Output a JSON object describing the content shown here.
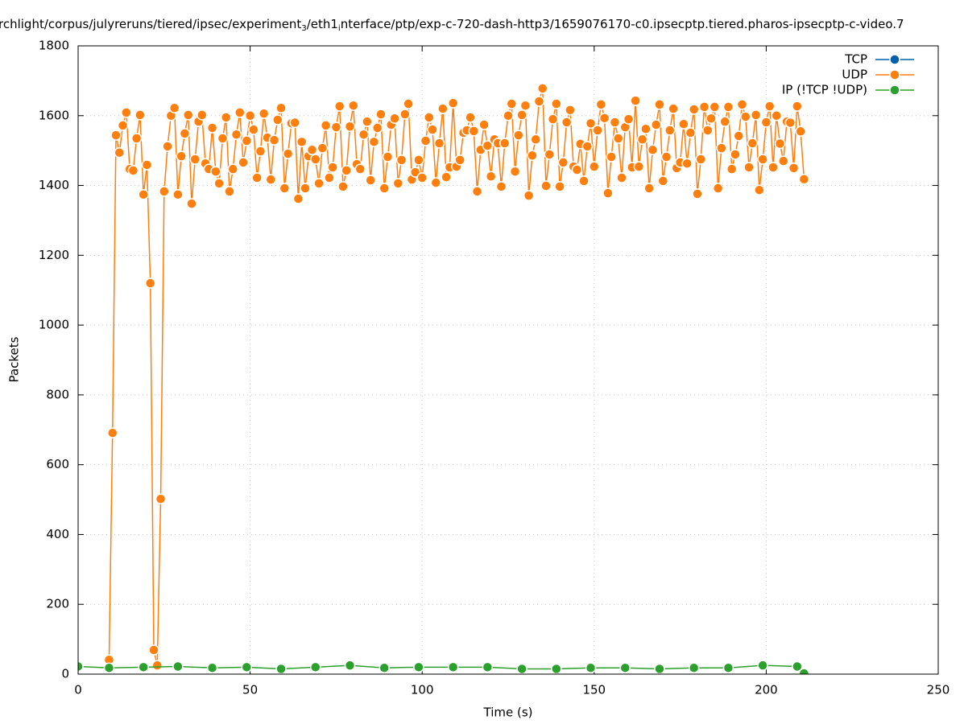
{
  "chart_data": {
    "type": "line",
    "title": [
      "rchlight/corpus/julyreruns/tiered/ipsec/experiment",
      "3",
      "/eth1",
      "i",
      "nterface/ptp/exp-c-720-dash-http3/1659076170-c0.ipsecptp.tiered.pharos-ipsecptp-c-video.7"
    ],
    "xlabel": "Time (s)",
    "ylabel": "Packets",
    "xlim": [
      0,
      250
    ],
    "xticks": [
      0,
      50,
      100,
      150,
      200,
      250
    ],
    "ylim": [
      0,
      1800
    ],
    "yticks": [
      0,
      200,
      400,
      600,
      800,
      1000,
      1200,
      1400,
      1600,
      1800
    ],
    "grid": true,
    "legend": "top-right",
    "series": [
      {
        "name": "TCP",
        "color": "#0060ad",
        "x": [],
        "values": []
      },
      {
        "name": "UDP",
        "color": "#ff7f0e",
        "x": [
          9,
          10,
          11,
          12,
          13,
          14,
          15,
          16,
          17,
          18,
          19,
          20,
          21,
          22,
          23,
          24,
          25,
          26,
          27,
          28,
          29,
          30,
          31,
          32,
          33,
          34,
          35,
          36,
          37,
          38,
          39,
          40,
          41,
          42,
          43,
          44,
          45,
          46,
          47,
          48,
          49,
          50,
          51,
          52,
          53,
          54,
          55,
          56,
          57,
          58,
          59,
          60,
          61,
          62,
          63,
          64,
          65,
          66,
          67,
          68,
          69,
          70,
          71,
          72,
          73,
          74,
          75,
          76,
          77,
          78,
          79,
          80,
          81,
          82,
          83,
          84,
          85,
          86,
          87,
          88,
          89,
          90,
          91,
          92,
          93,
          94,
          95,
          96,
          97,
          98,
          99,
          100,
          101,
          102,
          103,
          104,
          105,
          106,
          107,
          108,
          109,
          110,
          111,
          112,
          113,
          114,
          115,
          116,
          117,
          118,
          119,
          120,
          121,
          122,
          123,
          124,
          125,
          126,
          127,
          128,
          129,
          130,
          131,
          132,
          133,
          134,
          135,
          136,
          137,
          138,
          139,
          140,
          141,
          142,
          143,
          144,
          145,
          146,
          147,
          148,
          149,
          150,
          151,
          152,
          153,
          154,
          155,
          156,
          157,
          158,
          159,
          160,
          161,
          162,
          163,
          164,
          165,
          166,
          167,
          168,
          169,
          170,
          171,
          172,
          173,
          174,
          175,
          176,
          177,
          178,
          179,
          180,
          181,
          182,
          183,
          184,
          185,
          186,
          187,
          188,
          189,
          190,
          191,
          192,
          193,
          194,
          195,
          196,
          197,
          198,
          199,
          200,
          201,
          202,
          203,
          204,
          205,
          206,
          207,
          208,
          209,
          210,
          211
        ],
        "values": [
          41,
          691,
          1544,
          1494,
          1572,
          1609,
          1447,
          1443,
          1535,
          1602,
          1374,
          1459,
          1120,
          69,
          25,
          502,
          1383,
          1512,
          1600,
          1622,
          1374,
          1484,
          1549,
          1602,
          1348,
          1475,
          1583,
          1602,
          1463,
          1447,
          1565,
          1440,
          1406,
          1535,
          1595,
          1383,
          1447,
          1546,
          1609,
          1466,
          1528,
          1600,
          1560,
          1422,
          1498,
          1606,
          1537,
          1417,
          1530,
          1588,
          1622,
          1392,
          1491,
          1578,
          1580,
          1362,
          1525,
          1392,
          1484,
          1502,
          1475,
          1406,
          1507,
          1572,
          1422,
          1452,
          1567,
          1627,
          1397,
          1443,
          1569,
          1629,
          1461,
          1447,
          1546,
          1583,
          1415,
          1525,
          1565,
          1604,
          1392,
          1482,
          1574,
          1592,
          1406,
          1473,
          1604,
          1634,
          1417,
          1438,
          1473,
          1422,
          1528,
          1595,
          1560,
          1408,
          1521,
          1620,
          1424,
          1452,
          1636,
          1454,
          1473,
          1551,
          1558,
          1595,
          1556,
          1383,
          1502,
          1574,
          1514,
          1426,
          1532,
          1521,
          1397,
          1521,
          1600,
          1634,
          1440,
          1544,
          1602,
          1629,
          1371,
          1486,
          1532,
          1641,
          1678,
          1399,
          1489,
          1590,
          1634,
          1397,
          1466,
          1581,
          1616,
          1454,
          1445,
          1519,
          1413,
          1512,
          1578,
          1454,
          1558,
          1632,
          1593,
          1378,
          1482,
          1581,
          1535,
          1422,
          1567,
          1590,
          1452,
          1643,
          1454,
          1532,
          1562,
          1392,
          1502,
          1574,
          1632,
          1413,
          1482,
          1558,
          1620,
          1450,
          1466,
          1576,
          1463,
          1551,
          1618,
          1376,
          1475,
          1625,
          1558,
          1592,
          1625,
          1392,
          1507,
          1583,
          1625,
          1447,
          1489,
          1542,
          1632,
          1597,
          1452,
          1521,
          1602,
          1387,
          1475,
          1581,
          1627,
          1452,
          1600,
          1520,
          1470,
          1583,
          1580,
          1450,
          1627,
          1555,
          1418
        ]
      },
      {
        "name": "IP (!TCP  !UDP)",
        "color": "#2ca02c",
        "x": [
          0,
          9,
          19,
          29,
          39,
          49,
          59,
          69,
          79,
          89,
          99,
          109,
          119,
          129,
          139,
          149,
          159,
          169,
          179,
          189,
          199,
          209,
          211
        ],
        "values": [
          22,
          18,
          20,
          22,
          18,
          20,
          15,
          20,
          25,
          18,
          20,
          20,
          20,
          15,
          15,
          18,
          18,
          15,
          18,
          18,
          25,
          22,
          2
        ]
      }
    ]
  }
}
